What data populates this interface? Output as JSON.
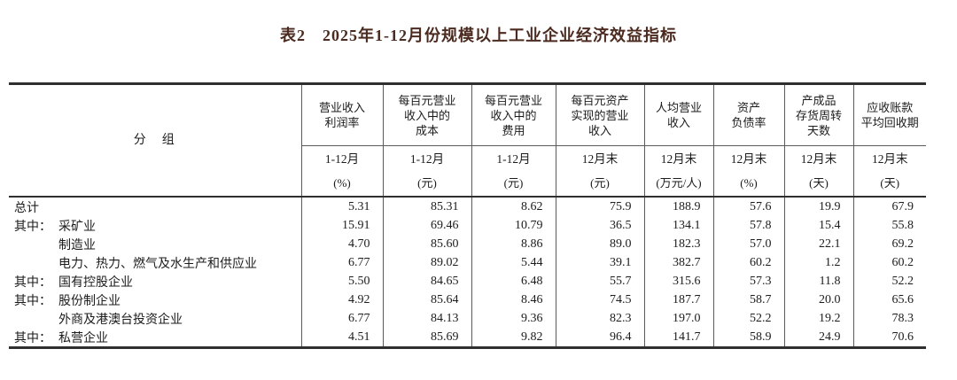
{
  "title": "表2　2025年1-12月份规模以上工业企业经济效益指标",
  "colors": {
    "title_text": "#4b2a1f",
    "body_text": "#1c1c1c",
    "rule_thick": "#2f2f2f",
    "rule_thin": "#5a5a5a"
  },
  "table": {
    "group_header": "分　组",
    "columns": [
      {
        "key": "profit-margin-on-revenue",
        "label": "营业收入\n利润率",
        "period": "1-12月",
        "unit": "(%)"
      },
      {
        "key": "cost-per-100-yuan-revenue",
        "label": "每百元营业\n收入中的\n成本",
        "period": "1-12月",
        "unit": "(元)"
      },
      {
        "key": "expense-per-100-yuan-revenue",
        "label": "每百元营业\n收入中的\n费用",
        "period": "1-12月",
        "unit": "(元)"
      },
      {
        "key": "revenue-per-100-yuan-assets",
        "label": "每百元资产\n实现的营业\n收入",
        "period": "12月末",
        "unit": "(元)"
      },
      {
        "key": "revenue-per-capita",
        "label": "人均营业\n收入",
        "period": "12月末",
        "unit": "(万元/人)"
      },
      {
        "key": "asset-liability-ratio",
        "label": "资产\n负债率",
        "period": "12月末",
        "unit": "(%)"
      },
      {
        "key": "finished-goods-turnover-days",
        "label": "产成品\n存货周转\n天数",
        "period": "12月末",
        "unit": "(天)"
      },
      {
        "key": "receivables-collection-period",
        "label": "应收账款\n平均回收期",
        "period": "12月末",
        "unit": "(天)"
      }
    ],
    "rows": [
      {
        "prefix": "",
        "name": "总计",
        "indent": false,
        "values": [
          "5.31",
          "85.31",
          "8.62",
          "75.9",
          "188.9",
          "57.6",
          "19.9",
          "67.9"
        ]
      },
      {
        "prefix": "其中：",
        "name": "采矿业",
        "indent": false,
        "values": [
          "15.91",
          "69.46",
          "10.79",
          "36.5",
          "134.1",
          "57.8",
          "15.4",
          "55.8"
        ]
      },
      {
        "prefix": "",
        "name": "制造业",
        "indent": true,
        "values": [
          "4.70",
          "85.60",
          "8.86",
          "89.0",
          "182.3",
          "57.0",
          "22.1",
          "69.2"
        ]
      },
      {
        "prefix": "",
        "name": "电力、热力、燃气及水生产和供应业",
        "indent": true,
        "values": [
          "6.77",
          "89.02",
          "5.44",
          "39.1",
          "382.7",
          "60.2",
          "1.2",
          "60.2"
        ]
      },
      {
        "prefix": "其中：",
        "name": "国有控股企业",
        "indent": false,
        "values": [
          "5.50",
          "84.65",
          "6.48",
          "55.7",
          "315.6",
          "57.3",
          "11.8",
          "52.2"
        ]
      },
      {
        "prefix": "其中：",
        "name": "股份制企业",
        "indent": false,
        "values": [
          "4.92",
          "85.64",
          "8.46",
          "74.5",
          "187.7",
          "58.7",
          "20.0",
          "65.6"
        ]
      },
      {
        "prefix": "",
        "name": "外商及港澳台投资企业",
        "indent": true,
        "values": [
          "6.77",
          "84.13",
          "9.36",
          "82.3",
          "197.0",
          "52.2",
          "19.2",
          "78.3"
        ]
      },
      {
        "prefix": "其中：",
        "name": "私营企业",
        "indent": false,
        "values": [
          "4.51",
          "85.69",
          "9.82",
          "96.4",
          "141.7",
          "58.9",
          "24.9",
          "70.6"
        ]
      }
    ]
  }
}
